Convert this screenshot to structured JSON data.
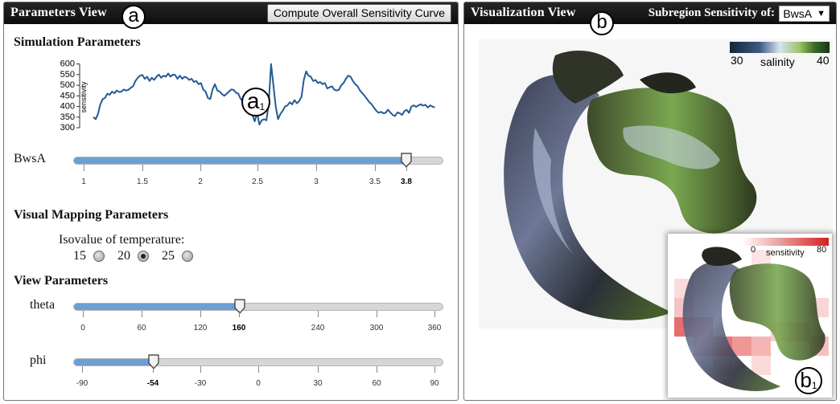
{
  "params_view": {
    "title": "Parameters View",
    "badge": "a",
    "compute_button": "Compute Overall Sensitivity Curve"
  },
  "simulation": {
    "title": "Simulation Parameters",
    "chart_badge": "a",
    "chart_badge_sub": "1",
    "param_label": "BwsA",
    "slider_ticks": [
      "1",
      "1.5",
      "2",
      "2.5",
      "3",
      "3.5",
      "3.8"
    ],
    "slider_current": "3.8"
  },
  "chart_data": {
    "type": "line",
    "title": "",
    "xlabel": "",
    "ylabel": "sensitivity",
    "xlim": [
      1,
      4
    ],
    "ylim": [
      285,
      625
    ],
    "y_ticks": [
      300,
      350,
      400,
      450,
      500,
      550,
      600
    ],
    "series": [
      {
        "values": [
          [
            1.0,
            350
          ],
          [
            1.02,
            340
          ],
          [
            1.04,
            365
          ],
          [
            1.06,
            410
          ],
          [
            1.08,
            435
          ],
          [
            1.1,
            440
          ],
          [
            1.12,
            460
          ],
          [
            1.14,
            455
          ],
          [
            1.16,
            470
          ],
          [
            1.18,
            462
          ],
          [
            1.2,
            475
          ],
          [
            1.22,
            468
          ],
          [
            1.24,
            470
          ],
          [
            1.26,
            480
          ],
          [
            1.28,
            475
          ],
          [
            1.3,
            478
          ],
          [
            1.32,
            488
          ],
          [
            1.34,
            495
          ],
          [
            1.36,
            520
          ],
          [
            1.38,
            535
          ],
          [
            1.4,
            545
          ],
          [
            1.42,
            548
          ],
          [
            1.44,
            530
          ],
          [
            1.46,
            540
          ],
          [
            1.48,
            520
          ],
          [
            1.5,
            535
          ],
          [
            1.52,
            525
          ],
          [
            1.54,
            540
          ],
          [
            1.56,
            550
          ],
          [
            1.58,
            535
          ],
          [
            1.6,
            545
          ],
          [
            1.62,
            540
          ],
          [
            1.64,
            555
          ],
          [
            1.66,
            540
          ],
          [
            1.68,
            550
          ],
          [
            1.7,
            548
          ],
          [
            1.72,
            530
          ],
          [
            1.74,
            545
          ],
          [
            1.76,
            530
          ],
          [
            1.78,
            540
          ],
          [
            1.8,
            535
          ],
          [
            1.82,
            525
          ],
          [
            1.84,
            530
          ],
          [
            1.86,
            515
          ],
          [
            1.88,
            520
          ],
          [
            1.9,
            505
          ],
          [
            1.92,
            510
          ],
          [
            1.94,
            480
          ],
          [
            1.96,
            470
          ],
          [
            1.98,
            440
          ],
          [
            2.0,
            435
          ],
          [
            2.02,
            480
          ],
          [
            2.04,
            505
          ],
          [
            2.06,
            475
          ],
          [
            2.08,
            470
          ],
          [
            2.1,
            458
          ],
          [
            2.12,
            450
          ],
          [
            2.14,
            460
          ],
          [
            2.16,
            470
          ],
          [
            2.18,
            480
          ],
          [
            2.2,
            478
          ],
          [
            2.22,
            465
          ],
          [
            2.24,
            460
          ],
          [
            2.26,
            435
          ],
          [
            2.28,
            425
          ],
          [
            2.3,
            410
          ],
          [
            2.32,
            400
          ],
          [
            2.34,
            385
          ],
          [
            2.36,
            360
          ],
          [
            2.38,
            330
          ],
          [
            2.4,
            370
          ],
          [
            2.42,
            315
          ],
          [
            2.44,
            335
          ],
          [
            2.46,
            340
          ],
          [
            2.48,
            335
          ],
          [
            2.5,
            415
          ],
          [
            2.52,
            600
          ],
          [
            2.54,
            500
          ],
          [
            2.56,
            400
          ],
          [
            2.58,
            340
          ],
          [
            2.6,
            365
          ],
          [
            2.62,
            380
          ],
          [
            2.64,
            400
          ],
          [
            2.66,
            405
          ],
          [
            2.68,
            420
          ],
          [
            2.7,
            410
          ],
          [
            2.72,
            430
          ],
          [
            2.74,
            415
          ],
          [
            2.76,
            425
          ],
          [
            2.78,
            445
          ],
          [
            2.8,
            525
          ],
          [
            2.82,
            565
          ],
          [
            2.84,
            545
          ],
          [
            2.86,
            540
          ],
          [
            2.88,
            520
          ],
          [
            2.9,
            525
          ],
          [
            2.92,
            510
          ],
          [
            2.94,
            515
          ],
          [
            2.96,
            505
          ],
          [
            2.98,
            510
          ],
          [
            3.0,
            485
          ],
          [
            3.02,
            490
          ],
          [
            3.04,
            495
          ],
          [
            3.06,
            480
          ],
          [
            3.08,
            475
          ],
          [
            3.1,
            478
          ],
          [
            3.12,
            500
          ],
          [
            3.14,
            510
          ],
          [
            3.16,
            530
          ],
          [
            3.18,
            545
          ],
          [
            3.2,
            540
          ],
          [
            3.22,
            520
          ],
          [
            3.24,
            505
          ],
          [
            3.26,
            495
          ],
          [
            3.28,
            475
          ],
          [
            3.3,
            462
          ],
          [
            3.32,
            450
          ],
          [
            3.34,
            435
          ],
          [
            3.36,
            420
          ],
          [
            3.38,
            410
          ],
          [
            3.4,
            395
          ],
          [
            3.42,
            380
          ],
          [
            3.44,
            370
          ],
          [
            3.46,
            375
          ],
          [
            3.48,
            368
          ],
          [
            3.5,
            370
          ],
          [
            3.52,
            385
          ],
          [
            3.54,
            372
          ],
          [
            3.56,
            360
          ],
          [
            3.58,
            355
          ],
          [
            3.6,
            372
          ],
          [
            3.62,
            368
          ],
          [
            3.64,
            360
          ],
          [
            3.66,
            378
          ],
          [
            3.68,
            384
          ],
          [
            3.7,
            370
          ],
          [
            3.72,
            400
          ],
          [
            3.74,
            405
          ],
          [
            3.76,
            398
          ],
          [
            3.78,
            405
          ],
          [
            3.8,
            410
          ],
          [
            3.82,
            404
          ],
          [
            3.84,
            408
          ],
          [
            3.86,
            395
          ],
          [
            3.88,
            405
          ],
          [
            3.9,
            400
          ],
          [
            3.92,
            395
          ]
        ]
      }
    ]
  },
  "visual_mapping": {
    "title": "Visual Mapping Parameters",
    "isovalue_label": "Isovalue of temperature:",
    "options": [
      {
        "label": "15",
        "selected": false
      },
      {
        "label": "20",
        "selected": true
      },
      {
        "label": "25",
        "selected": false
      }
    ]
  },
  "view_params": {
    "title": "View Parameters",
    "theta": {
      "label": "theta",
      "ticks": [
        "0",
        "60",
        "120",
        "160",
        "240",
        "300",
        "360"
      ],
      "current": "160"
    },
    "phi": {
      "label": "phi",
      "ticks": [
        "-90",
        "-54",
        "-30",
        "0",
        "30",
        "60",
        "90"
      ],
      "current": "-54"
    }
  },
  "vis_view": {
    "title": "Visualization View",
    "badge": "b",
    "subregion_label": "Subregion Sensitivity of:",
    "select_value": "BwsA",
    "colorbar": {
      "min": "30",
      "max": "40",
      "label": "salinity"
    },
    "inset_badge": "b",
    "inset_badge_sub": "1",
    "inset_colorbar": {
      "min": "0",
      "max": "80",
      "label": "sensitivity"
    }
  },
  "colors": {
    "line": "#245a96",
    "slider_fill": "#6c9fd3",
    "titlebar": "#111111"
  }
}
